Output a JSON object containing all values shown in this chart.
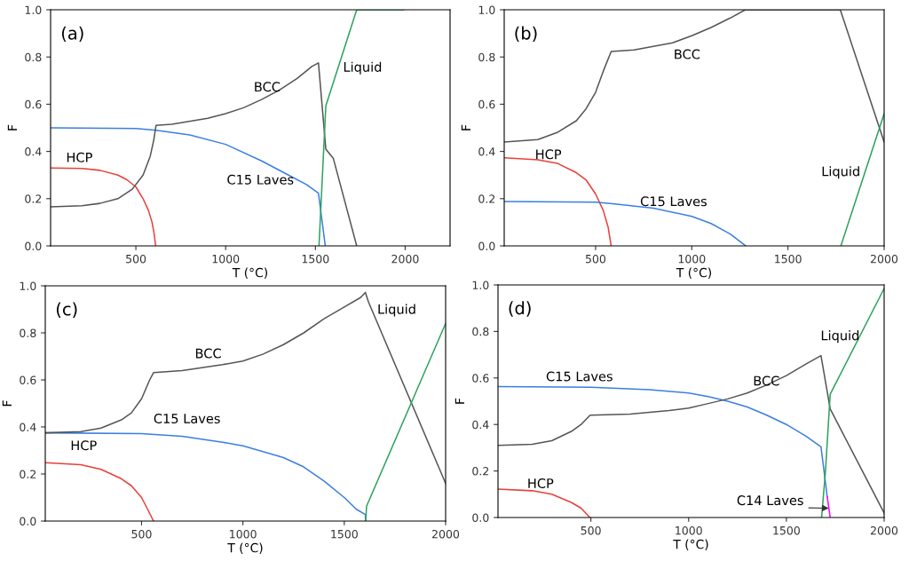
{
  "chart_data": [
    {
      "type": "line",
      "title": "(a)",
      "xlabel": "T (°C)",
      "ylabel": "F",
      "xlim": [
        25,
        2250
      ],
      "ylim": [
        0,
        1
      ],
      "xticks": [
        500,
        1000,
        1500,
        2000
      ],
      "yticks": [
        {
          "value": 0,
          "label": "0.0"
        },
        {
          "value": 0.2,
          "label": "0.2"
        },
        {
          "value": 0.4,
          "label": "0.4"
        },
        {
          "value": 0.6,
          "label": "0.6"
        },
        {
          "value": 0.8,
          "label": "0.8"
        },
        {
          "value": 1,
          "label": "1.0"
        }
      ],
      "grid": false,
      "legend": false,
      "marker": "none",
      "line_style": "solid",
      "series": [
        {
          "color": "#e8403a",
          "x": [
            25,
            200,
            300,
            400,
            450,
            500,
            540,
            570,
            590,
            602,
            610
          ],
          "values": [
            0.33,
            0.328,
            0.32,
            0.3,
            0.28,
            0.25,
            0.2,
            0.15,
            0.1,
            0.05,
            0.0
          ]
        },
        {
          "color": "#3a7fe0",
          "x": [
            25,
            500,
            612,
            800,
            1000,
            1200,
            1350,
            1450,
            1517,
            1555
          ],
          "values": [
            0.5,
            0.497,
            0.49,
            0.47,
            0.43,
            0.36,
            0.3,
            0.26,
            0.223,
            0.0
          ]
        },
        {
          "color": "#555555",
          "x": [
            25,
            200,
            300,
            400,
            480,
            540,
            580,
            600,
            612,
            700,
            900,
            1000,
            1100,
            1200,
            1300,
            1400,
            1480,
            1517,
            1558,
            1600,
            1730
          ],
          "values": [
            0.165,
            0.17,
            0.18,
            0.2,
            0.24,
            0.3,
            0.38,
            0.45,
            0.51,
            0.515,
            0.54,
            0.56,
            0.585,
            0.62,
            0.66,
            0.71,
            0.76,
            0.775,
            0.41,
            0.37,
            0.0
          ]
        },
        {
          "color": "#2ca25f",
          "x": [
            1520,
            1558,
            1730,
            1992
          ],
          "values": [
            0.0,
            0.593,
            1.0,
            1.0
          ]
        }
      ],
      "annotations": [
        "HCP",
        "C15 Laves",
        "BCC",
        "Liquid"
      ]
    },
    {
      "type": "line",
      "title": "(b)",
      "xlabel": "T (°C)",
      "ylabel": "F",
      "xlim": [
        25,
        2000
      ],
      "ylim": [
        0,
        1
      ],
      "xticks": [
        500,
        1000,
        1500,
        2000
      ],
      "yticks": [
        {
          "value": 0,
          "label": "0.0"
        },
        {
          "value": 0.2,
          "label": "0.2"
        },
        {
          "value": 0.4,
          "label": "0.4"
        },
        {
          "value": 0.6,
          "label": "0.6"
        },
        {
          "value": 0.8,
          "label": "0.8"
        },
        {
          "value": 1,
          "label": "1.0"
        }
      ],
      "grid": false,
      "legend": false,
      "marker": "none",
      "line_style": "solid",
      "series": [
        {
          "color": "#e8403a",
          "x": [
            25,
            200,
            300,
            400,
            450,
            500,
            540,
            565,
            581
          ],
          "values": [
            0.373,
            0.365,
            0.35,
            0.31,
            0.28,
            0.22,
            0.15,
            0.08,
            0.0
          ]
        },
        {
          "color": "#3a7fe0",
          "x": [
            25,
            500,
            600,
            800,
            1000,
            1100,
            1200,
            1280
          ],
          "values": [
            0.188,
            0.185,
            0.178,
            0.16,
            0.125,
            0.095,
            0.05,
            0.0
          ]
        },
        {
          "color": "#555555",
          "x": [
            25,
            200,
            300,
            400,
            450,
            500,
            540,
            581,
            700,
            900,
            1000,
            1100,
            1200,
            1278,
            1772,
            2000
          ],
          "values": [
            0.44,
            0.45,
            0.48,
            0.53,
            0.58,
            0.65,
            0.74,
            0.823,
            0.83,
            0.86,
            0.89,
            0.925,
            0.965,
            1.0,
            1.0,
            0.44
          ]
        },
        {
          "color": "#2ca25f",
          "x": [
            1775,
            2000
          ],
          "values": [
            0.0,
            0.56
          ]
        }
      ],
      "annotations": [
        "HCP",
        "C15 Laves",
        "BCC",
        "Liquid"
      ]
    },
    {
      "type": "line",
      "title": "(c)",
      "xlabel": "T (°C)",
      "ylabel": "F",
      "xlim": [
        25,
        2000
      ],
      "ylim": [
        0,
        1
      ],
      "xticks": [
        500,
        1000,
        1500,
        2000
      ],
      "yticks": [
        {
          "value": 0,
          "label": "0.0"
        },
        {
          "value": 0.2,
          "label": "0.2"
        },
        {
          "value": 0.4,
          "label": "0.4"
        },
        {
          "value": 0.6,
          "label": "0.6"
        },
        {
          "value": 0.8,
          "label": "0.8"
        },
        {
          "value": 1,
          "label": "1.0"
        }
      ],
      "grid": false,
      "legend": false,
      "marker": "none",
      "line_style": "solid",
      "series": [
        {
          "color": "#e8403a",
          "x": [
            25,
            200,
            300,
            400,
            450,
            500,
            530,
            559
          ],
          "values": [
            0.248,
            0.24,
            0.22,
            0.18,
            0.15,
            0.1,
            0.05,
            0.0
          ]
        },
        {
          "color": "#3a7fe0",
          "x": [
            25,
            500,
            700,
            900,
            1000,
            1200,
            1300,
            1400,
            1500,
            1560,
            1604,
            1605
          ],
          "values": [
            0.375,
            0.372,
            0.36,
            0.335,
            0.32,
            0.27,
            0.23,
            0.17,
            0.1,
            0.05,
            0.028,
            0.0
          ]
        },
        {
          "color": "#555555",
          "x": [
            25,
            200,
            300,
            400,
            450,
            500,
            540,
            559,
            700,
            900,
            1000,
            1100,
            1200,
            1300,
            1400,
            1500,
            1580,
            1604,
            1620,
            2000
          ],
          "values": [
            0.375,
            0.38,
            0.395,
            0.43,
            0.46,
            0.52,
            0.6,
            0.631,
            0.64,
            0.665,
            0.68,
            0.71,
            0.75,
            0.8,
            0.86,
            0.91,
            0.95,
            0.972,
            0.93,
            0.16
          ]
        },
        {
          "color": "#2ca25f",
          "x": [
            1606,
            1610,
            2000
          ],
          "values": [
            0.0,
            0.063,
            0.84
          ]
        }
      ],
      "annotations": [
        "HCP",
        "C15 Laves",
        "BCC",
        "Liquid"
      ]
    },
    {
      "type": "line",
      "title": "(d)",
      "xlabel": "T (°C)",
      "ylabel": "F",
      "xlim": [
        25,
        2000
      ],
      "ylim": [
        0,
        1
      ],
      "xticks": [
        500,
        1000,
        1500,
        2000
      ],
      "yticks": [
        {
          "value": 0,
          "label": "0.0"
        },
        {
          "value": 0.2,
          "label": "0.2"
        },
        {
          "value": 0.4,
          "label": "0.4"
        },
        {
          "value": 0.6,
          "label": "0.6"
        },
        {
          "value": 0.8,
          "label": "0.8"
        },
        {
          "value": 1,
          "label": "1.0"
        }
      ],
      "grid": false,
      "legend": false,
      "marker": "none",
      "line_style": "solid",
      "series": [
        {
          "color": "#e8403a",
          "x": [
            25,
            200,
            300,
            400,
            450,
            495
          ],
          "values": [
            0.122,
            0.115,
            0.1,
            0.065,
            0.04,
            0.0
          ]
        },
        {
          "color": "#3a7fe0",
          "x": [
            25,
            500,
            800,
            1000,
            1100,
            1200,
            1300,
            1400,
            1500,
            1600,
            1677,
            1709
          ],
          "values": [
            0.563,
            0.56,
            0.55,
            0.535,
            0.52,
            0.5,
            0.475,
            0.44,
            0.4,
            0.35,
            0.304,
            0.088
          ]
        },
        {
          "color": "#555555",
          "x": [
            25,
            200,
            300,
            400,
            450,
            496,
            700,
            900,
            1000,
            1100,
            1200,
            1300,
            1400,
            1500,
            1600,
            1677,
            1724,
            2000
          ],
          "values": [
            0.31,
            0.315,
            0.33,
            0.37,
            0.4,
            0.44,
            0.445,
            0.46,
            0.47,
            0.49,
            0.51,
            0.535,
            0.57,
            0.61,
            0.66,
            0.696,
            0.467,
            0.019
          ]
        },
        {
          "color": "#2ca25f",
          "x": [
            1680,
            1700,
            1724,
            2000
          ],
          "values": [
            0.0,
            0.2,
            0.53,
            0.985
          ]
        },
        {
          "color": "#ff00ff",
          "x": [
            1709,
            1724
          ],
          "values": [
            0.088,
            0.0
          ]
        }
      ],
      "annotations": [
        "HCP",
        "C15 Laves",
        "BCC",
        "Liquid",
        {
          "text": "C14 Laves",
          "x": 1717,
          "y": 0.04
        }
      ]
    }
  ]
}
